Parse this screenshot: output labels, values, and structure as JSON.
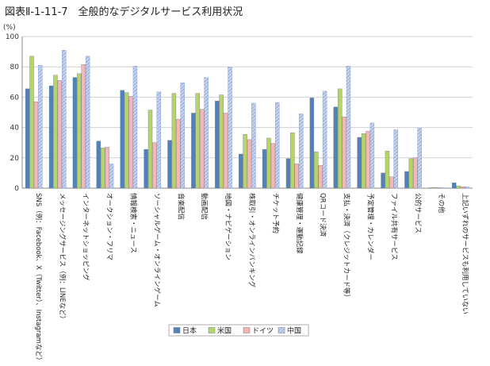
{
  "title": "図表Ⅱ-1-11-7　全般的なデジタルサービス利用状況",
  "chart_data": {
    "type": "bar",
    "ylabel": "(%)",
    "ylim": [
      0,
      100
    ],
    "yticks": [
      0,
      20,
      40,
      60,
      80,
      100
    ],
    "grid": true,
    "legend_position": "bottom",
    "categories": [
      "SNS（例：Facebook、X（Twitter）、Instagramなど）",
      "メッセージングサービス（例：LINEなど）",
      "インターネットショッピング",
      "オークション・フリマ",
      "情報検索・ニュース",
      "ソーシャルゲーム・オンラインゲーム",
      "音楽配信",
      "動画配信",
      "地図・ナビゲーション",
      "株取引・オンラインバンキング",
      "チケット予約",
      "健康管理・運動記録",
      "QRコード決済",
      "支払・決済（クレジットカード等）",
      "予定管理・カレンダー",
      "ファイル共有サービス",
      "公的サービス",
      "その他",
      "上記いずれのサービスも利用していない"
    ],
    "series": [
      {
        "name": "日本",
        "color": "#4f81bd",
        "pattern": "solid",
        "values": [
          65.5,
          67.5,
          73,
          31,
          64.5,
          25.5,
          31.5,
          49.5,
          57.5,
          22.5,
          25.5,
          19.5,
          59.5,
          53.5,
          33.5,
          10,
          11,
          0.2,
          3.5
        ]
      },
      {
        "name": "米国",
        "color": "#b5d56a",
        "pattern": "solid",
        "values": [
          87,
          74.5,
          75.5,
          26.5,
          63,
          51.5,
          62.5,
          62.5,
          61.5,
          35.5,
          33,
          36.5,
          24,
          65.5,
          36,
          24.5,
          19.5,
          0.5,
          1.5
        ]
      },
      {
        "name": "ドイツ",
        "color": "#f4b6b6",
        "pattern": "solid",
        "values": [
          57,
          71,
          81.5,
          27,
          60.5,
          30,
          45.5,
          52,
          49.5,
          32,
          29.5,
          16,
          15,
          47,
          37.5,
          7.5,
          20,
          0.3,
          1
        ]
      },
      {
        "name": "中国",
        "color": "#9db3e0",
        "pattern": "hatch",
        "values": [
          81,
          91,
          87,
          16,
          80.5,
          63.5,
          69.5,
          73,
          80,
          56,
          56.5,
          49,
          64,
          80.5,
          43,
          38.5,
          39.5,
          0.1,
          1
        ]
      }
    ]
  }
}
